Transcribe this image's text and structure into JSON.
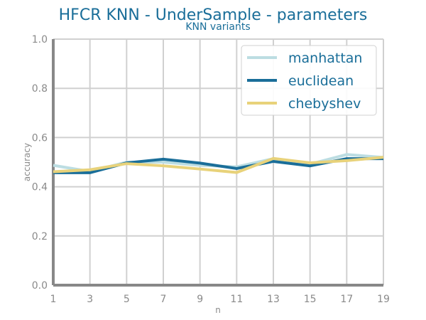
{
  "chart_data": {
    "type": "line",
    "title": "HFCR KNN - UnderSample - parameters",
    "subtitle": "KNN variants",
    "xlabel": "n",
    "ylabel": "accuracy",
    "x": [
      1,
      3,
      5,
      7,
      9,
      11,
      13,
      15,
      17,
      19
    ],
    "xticks": [
      "1",
      "3",
      "5",
      "7",
      "9",
      "11",
      "13",
      "15",
      "17",
      "19"
    ],
    "yticks": [
      "0.0",
      "0.2",
      "0.4",
      "0.6",
      "0.8",
      "1.0"
    ],
    "xlim": [
      1,
      19
    ],
    "ylim": [
      0,
      1
    ],
    "grid": true,
    "legend_position": "top-right",
    "series": [
      {
        "name": "manhattan",
        "color": "#bcdde2",
        "values": [
          0.487,
          0.462,
          0.5,
          0.5,
          0.487,
          0.481,
          0.514,
          0.492,
          0.531,
          0.519
        ]
      },
      {
        "name": "euclidean",
        "color": "#1a6e99",
        "values": [
          0.457,
          0.457,
          0.497,
          0.512,
          0.496,
          0.474,
          0.503,
          0.485,
          0.514,
          0.514
        ]
      },
      {
        "name": "chebyshev",
        "color": "#e8d27a",
        "values": [
          0.461,
          0.469,
          0.494,
          0.485,
          0.472,
          0.458,
          0.515,
          0.497,
          0.506,
          0.52
        ]
      }
    ]
  }
}
